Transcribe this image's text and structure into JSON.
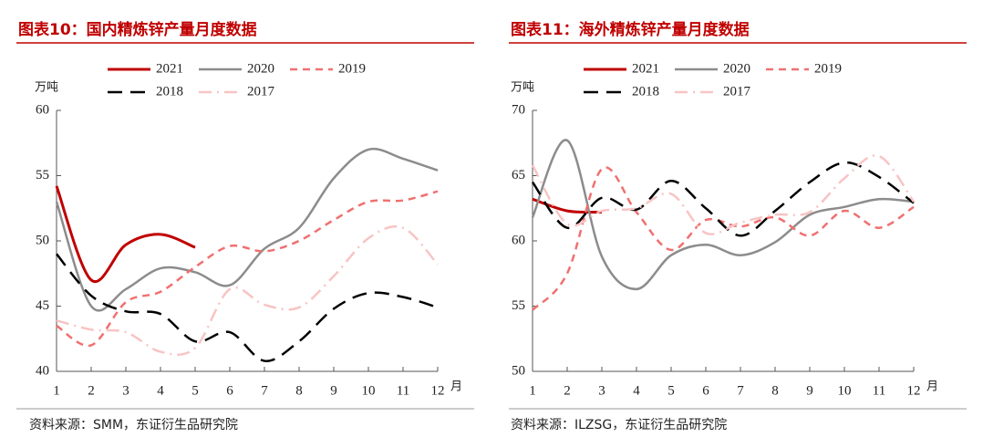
{
  "chart_data": [
    {
      "type": "line",
      "title": "图表10：国内精炼锌产量月度数据",
      "source": "资料来源：SMM，东证衍生品研究院",
      "y_label": "万吨",
      "x_label": "月",
      "xlim": [
        1,
        12
      ],
      "xticks": [
        1,
        2,
        3,
        4,
        5,
        6,
        7,
        8,
        9,
        10,
        11,
        12
      ],
      "ylim": [
        40,
        60
      ],
      "yticks": [
        40,
        45,
        50,
        55,
        60
      ],
      "series": [
        {
          "name": "2021",
          "color": "#c00000",
          "x": [
            1,
            2,
            3,
            4,
            5
          ],
          "values": [
            54.2,
            47.0,
            49.7,
            50.5,
            49.5
          ]
        },
        {
          "name": "2020",
          "color": "#8c8c8c",
          "x": [
            1,
            2,
            3,
            4,
            5,
            6,
            7,
            8,
            9,
            10,
            11,
            12
          ],
          "values": [
            53.0,
            45.0,
            46.3,
            47.9,
            47.6,
            46.6,
            49.4,
            51.0,
            54.8,
            57.0,
            56.3,
            55.4
          ]
        },
        {
          "name": "2019",
          "color": "#f07070",
          "x": [
            1,
            2,
            3,
            4,
            5,
            6,
            7,
            8,
            9,
            10,
            11,
            12
          ],
          "values": [
            43.5,
            42.0,
            45.3,
            46.1,
            48.0,
            49.6,
            49.2,
            50.0,
            51.6,
            53.0,
            53.1,
            53.8
          ]
        },
        {
          "name": "2018",
          "color": "#000000",
          "x": [
            1,
            2,
            3,
            4,
            5,
            6,
            7,
            8,
            9,
            10,
            11,
            12
          ],
          "values": [
            49.0,
            45.8,
            44.6,
            44.4,
            42.3,
            43.0,
            40.8,
            42.3,
            44.8,
            46.0,
            45.7,
            44.9
          ]
        },
        {
          "name": "2017",
          "color": "#f8c4c4",
          "x": [
            1,
            2,
            3,
            4,
            5,
            6,
            7,
            8,
            9,
            10,
            11,
            12
          ],
          "values": [
            43.9,
            43.2,
            43.0,
            41.5,
            41.8,
            46.3,
            45.1,
            44.9,
            47.3,
            50.2,
            51.0,
            48.2
          ]
        }
      ]
    },
    {
      "type": "line",
      "title": "图表11：海外精炼锌产量月度数据",
      "source": "资料来源：ILZSG，东证衍生品研究院",
      "y_label": "万吨",
      "x_label": "月",
      "xlim": [
        1,
        12
      ],
      "xticks": [
        1,
        2,
        3,
        4,
        5,
        6,
        7,
        8,
        9,
        10,
        11,
        12
      ],
      "ylim": [
        50,
        70
      ],
      "yticks": [
        50,
        55,
        60,
        65,
        70
      ],
      "series": [
        {
          "name": "2021",
          "color": "#c00000",
          "x": [
            1,
            2,
            3
          ],
          "values": [
            63.2,
            62.3,
            62.2
          ]
        },
        {
          "name": "2020",
          "color": "#8c8c8c",
          "x": [
            1,
            2,
            3,
            4,
            5,
            6,
            7,
            8,
            9,
            10,
            11,
            12
          ],
          "values": [
            61.8,
            67.7,
            58.8,
            56.3,
            58.9,
            59.7,
            58.9,
            59.9,
            62.0,
            62.6,
            63.2,
            63.0
          ]
        },
        {
          "name": "2019",
          "color": "#f07070",
          "x": [
            1,
            2,
            3,
            4,
            5,
            6,
            7,
            8,
            9,
            10,
            11,
            12
          ],
          "values": [
            54.7,
            57.5,
            65.5,
            62.2,
            59.3,
            61.6,
            61.1,
            61.8,
            60.4,
            62.3,
            61.0,
            62.6
          ]
        },
        {
          "name": "2018",
          "color": "#000000",
          "x": [
            1,
            2,
            3,
            4,
            5,
            6,
            7,
            8,
            9,
            10,
            11,
            12
          ],
          "values": [
            64.5,
            61.0,
            63.3,
            62.4,
            64.6,
            62.5,
            60.4,
            62.3,
            64.5,
            66.0,
            64.9,
            62.9
          ]
        },
        {
          "name": "2017",
          "color": "#f8c4c4",
          "x": [
            1,
            2,
            3,
            4,
            5,
            6,
            7,
            8,
            9,
            10,
            11,
            12
          ],
          "values": [
            65.8,
            61.3,
            62.3,
            62.5,
            63.6,
            60.6,
            61.4,
            62.0,
            62.2,
            64.8,
            66.5,
            63.0
          ]
        }
      ]
    }
  ]
}
